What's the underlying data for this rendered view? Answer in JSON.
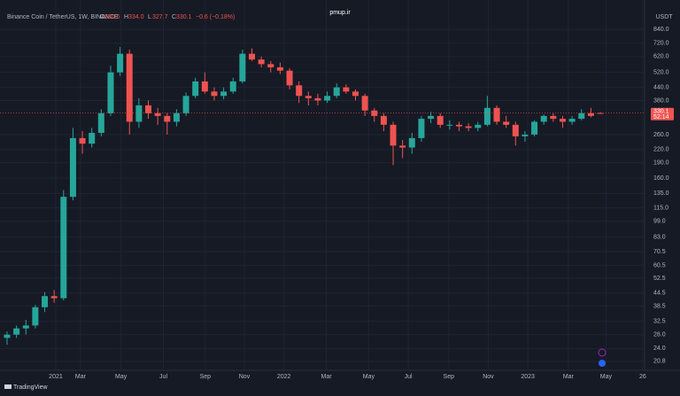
{
  "chart_data": {
    "type": "candlestick",
    "title": "Binance Coin / TetherUS, 1W, BINANCE",
    "ohlc_header": [
      {
        "label": "O",
        "value": "330.6"
      },
      {
        "label": "H",
        "value": "334.0"
      },
      {
        "label": "L",
        "value": "327.7"
      },
      {
        "label": "C",
        "value": "330.1"
      }
    ],
    "change": "−0.6 (−0.18%)",
    "currency": "USDT",
    "last_price": "330.1",
    "countdown": "52:14",
    "watermark": "pmup.ir",
    "brand": "TradingView",
    "up_color": "#26a69a",
    "down_color": "#ef5350",
    "log_scale": true,
    "grid": true,
    "ylim": [
      19.0,
      1055
    ],
    "yticks": [
      {
        "value": 20.8,
        "label": "20.8"
      },
      {
        "value": 24,
        "label": "24.0"
      },
      {
        "value": 28,
        "label": "28.0"
      },
      {
        "value": 32.5,
        "label": "32.5"
      },
      {
        "value": 38.5,
        "label": "38.5"
      },
      {
        "value": 44.5,
        "label": "44.5"
      },
      {
        "value": 52.5,
        "label": "52.5"
      },
      {
        "value": 60.5,
        "label": "60.5"
      },
      {
        "value": 70.5,
        "label": "70.5"
      },
      {
        "value": 83,
        "label": "83.0"
      },
      {
        "value": 99,
        "label": "99.0"
      },
      {
        "value": 115,
        "label": "115.0"
      },
      {
        "value": 135,
        "label": "135.0"
      },
      {
        "value": 160,
        "label": "160.0"
      },
      {
        "value": 190,
        "label": "190.0"
      },
      {
        "value": 220,
        "label": "220.0"
      },
      {
        "value": 260,
        "label": "260.0"
      },
      {
        "value": 380,
        "label": "380.0"
      },
      {
        "value": 440,
        "label": "440.0"
      },
      {
        "value": 520,
        "label": "520.0"
      },
      {
        "value": 620,
        "label": "620.0"
      },
      {
        "value": 720,
        "label": "720.0"
      },
      {
        "value": 840,
        "label": "840.0"
      }
    ],
    "xlim": [
      -0.75,
      67.7
    ],
    "xticks": [
      {
        "value": 5.17,
        "label": "2021"
      },
      {
        "value": 7.8,
        "label": "Mar"
      },
      {
        "value": 12.1,
        "label": "May"
      },
      {
        "value": 16.6,
        "label": "Jul"
      },
      {
        "value": 21.05,
        "label": "Sep"
      },
      {
        "value": 25.2,
        "label": "Nov"
      },
      {
        "value": 29.4,
        "label": "2022"
      },
      {
        "value": 33.9,
        "label": "Mar"
      },
      {
        "value": 38.4,
        "label": "May"
      },
      {
        "value": 42.6,
        "label": "Jul"
      },
      {
        "value": 46.9,
        "label": "Sep"
      },
      {
        "value": 51.1,
        "label": "Nov"
      },
      {
        "value": 55.3,
        "label": "2023"
      },
      {
        "value": 59.6,
        "label": "Mar"
      },
      {
        "value": 63.6,
        "label": "May"
      },
      {
        "value": 67.5,
        "label": "26"
      }
    ],
    "ohlc": [
      [
        27,
        29,
        25,
        28
      ],
      [
        28,
        31,
        27,
        30
      ],
      [
        30,
        33,
        28,
        31
      ],
      [
        31,
        39,
        30,
        38
      ],
      [
        38,
        45,
        36,
        43
      ],
      [
        43,
        46,
        40,
        42
      ],
      [
        42,
        140,
        41,
        130
      ],
      [
        130,
        280,
        125,
        250
      ],
      [
        250,
        270,
        210,
        235
      ],
      [
        235,
        280,
        225,
        265
      ],
      [
        265,
        345,
        255,
        330
      ],
      [
        330,
        560,
        320,
        520
      ],
      [
        520,
        690,
        500,
        640
      ],
      [
        640,
        670,
        260,
        300
      ],
      [
        300,
        390,
        280,
        360
      ],
      [
        360,
        380,
        310,
        330
      ],
      [
        330,
        350,
        290,
        320
      ],
      [
        320,
        330,
        260,
        300
      ],
      [
        300,
        345,
        285,
        330
      ],
      [
        330,
        415,
        320,
        400
      ],
      [
        400,
        490,
        390,
        470
      ],
      [
        470,
        520,
        410,
        420
      ],
      [
        420,
        440,
        380,
        400
      ],
      [
        400,
        440,
        385,
        420
      ],
      [
        420,
        490,
        410,
        470
      ],
      [
        470,
        670,
        460,
        640
      ],
      [
        640,
        680,
        590,
        600
      ],
      [
        600,
        620,
        550,
        570
      ],
      [
        570,
        590,
        520,
        550
      ],
      [
        550,
        580,
        510,
        530
      ],
      [
        530,
        545,
        430,
        450
      ],
      [
        450,
        470,
        370,
        400
      ],
      [
        400,
        420,
        360,
        390
      ],
      [
        390,
        410,
        360,
        380
      ],
      [
        380,
        420,
        370,
        400
      ],
      [
        400,
        460,
        390,
        440
      ],
      [
        440,
        455,
        410,
        420
      ],
      [
        420,
        430,
        380,
        400
      ],
      [
        400,
        410,
        320,
        340
      ],
      [
        340,
        350,
        300,
        320
      ],
      [
        320,
        330,
        270,
        290
      ],
      [
        290,
        300,
        185,
        230
      ],
      [
        230,
        245,
        200,
        225
      ],
      [
        225,
        265,
        210,
        250
      ],
      [
        250,
        320,
        240,
        310
      ],
      [
        310,
        335,
        295,
        320
      ],
      [
        320,
        330,
        280,
        290
      ],
      [
        290,
        305,
        275,
        290
      ],
      [
        290,
        300,
        270,
        285
      ],
      [
        285,
        295,
        270,
        280
      ],
      [
        280,
        300,
        270,
        290
      ],
      [
        290,
        400,
        285,
        350
      ],
      [
        350,
        360,
        290,
        300
      ],
      [
        300,
        320,
        280,
        290
      ],
      [
        290,
        300,
        230,
        255
      ],
      [
        255,
        270,
        240,
        260
      ],
      [
        260,
        305,
        255,
        300
      ],
      [
        300,
        325,
        290,
        320
      ],
      [
        320,
        330,
        300,
        310
      ],
      [
        310,
        320,
        280,
        300
      ],
      [
        300,
        320,
        290,
        310
      ],
      [
        310,
        345,
        305,
        330
      ],
      [
        330,
        350,
        315,
        320
      ],
      [
        330.6,
        334.0,
        327.7,
        330.1
      ]
    ]
  }
}
